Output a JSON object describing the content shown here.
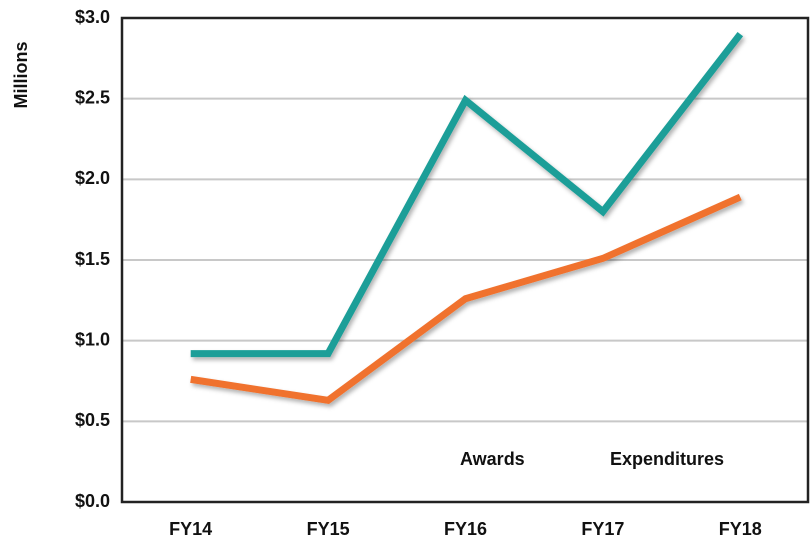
{
  "chart_data": {
    "type": "line",
    "y_label": "Millions",
    "categories": [
      "FY14",
      "FY15",
      "FY16",
      "FY17",
      "FY18"
    ],
    "series": [
      {
        "name": "Awards",
        "color": "#1b9e98",
        "values": [
          0.92,
          0.92,
          2.49,
          1.8,
          2.9
        ]
      },
      {
        "name": "Expenditures",
        "color": "#f0722f",
        "values": [
          0.76,
          0.63,
          1.26,
          1.51,
          1.89
        ]
      }
    ],
    "ylim": [
      0,
      3
    ],
    "yticks": [
      {
        "value": 0,
        "label": "$0.0"
      },
      {
        "value": 0.5,
        "label": "$0.5"
      },
      {
        "value": 1,
        "label": "$1.0"
      },
      {
        "value": 1.5,
        "label": "$1.5"
      },
      {
        "value": 2,
        "label": "$2.0"
      },
      {
        "value": 2.5,
        "label": "$2.5"
      },
      {
        "value": 3,
        "label": "$3.0"
      }
    ],
    "grid": true,
    "legend": "lower right"
  }
}
